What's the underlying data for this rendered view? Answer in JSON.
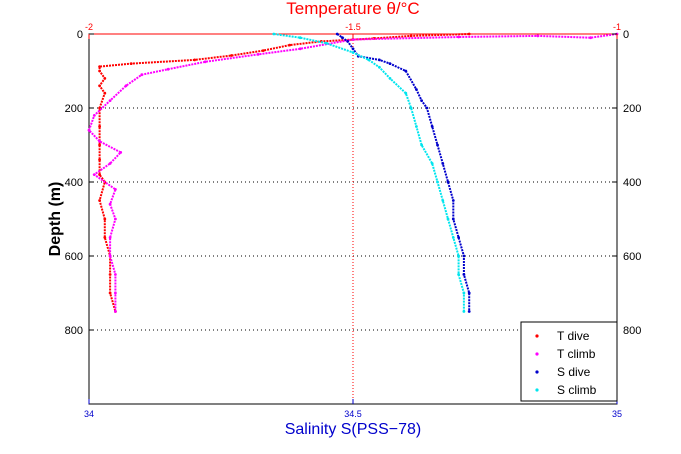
{
  "chart_data": {
    "type": "scatter",
    "top_axis": {
      "label": "Temperature θ/°C",
      "range": [
        -2,
        -1
      ],
      "ticks": [
        "-2",
        "-1.5",
        "-1"
      ],
      "color": "#ff0000"
    },
    "bottom_axis": {
      "label": "Salinity S(PSS−78)",
      "range": [
        34,
        35
      ],
      "ticks": [
        "34",
        "34.5",
        "35"
      ],
      "color": "#0000cc"
    },
    "y_axis": {
      "label": "Depth (m)",
      "range": [
        0,
        1000
      ],
      "reversed": true,
      "ticks": [
        "0",
        "200",
        "400",
        "600",
        "800"
      ],
      "grid": "dotted"
    },
    "legend_position": "bottom-right",
    "series": [
      {
        "name": "T dive",
        "axis": "top",
        "color": "#ff0000",
        "points": [
          [
            -1.28,
            0
          ],
          [
            -1.39,
            5
          ],
          [
            -1.46,
            12
          ],
          [
            -1.56,
            20
          ],
          [
            -1.62,
            30
          ],
          [
            -1.67,
            45
          ],
          [
            -1.73,
            58
          ],
          [
            -1.8,
            70
          ],
          [
            -1.92,
            80
          ],
          [
            -1.98,
            88
          ],
          [
            -1.98,
            100
          ],
          [
            -1.97,
            120
          ],
          [
            -1.98,
            140
          ],
          [
            -1.97,
            160
          ],
          [
            -1.98,
            200
          ],
          [
            -1.98,
            250
          ],
          [
            -1.98,
            300
          ],
          [
            -1.98,
            340
          ],
          [
            -1.98,
            380
          ],
          [
            -1.97,
            400
          ],
          [
            -1.98,
            450
          ],
          [
            -1.97,
            500
          ],
          [
            -1.97,
            550
          ],
          [
            -1.96,
            600
          ],
          [
            -1.96,
            650
          ],
          [
            -1.96,
            700
          ],
          [
            -1.95,
            750
          ]
        ]
      },
      {
        "name": "T climb",
        "axis": "top",
        "color": "#ff00ff",
        "points": [
          [
            -1.0,
            0
          ],
          [
            -1.05,
            10
          ],
          [
            -1.15,
            5
          ],
          [
            -1.3,
            8
          ],
          [
            -1.5,
            15
          ],
          [
            -1.6,
            40
          ],
          [
            -1.68,
            55
          ],
          [
            -1.78,
            75
          ],
          [
            -1.85,
            95
          ],
          [
            -1.9,
            110
          ],
          [
            -1.93,
            140
          ],
          [
            -1.96,
            180
          ],
          [
            -1.99,
            220
          ],
          [
            -2.0,
            260
          ],
          [
            -1.98,
            290
          ],
          [
            -1.94,
            320
          ],
          [
            -1.96,
            350
          ],
          [
            -1.99,
            380
          ],
          [
            -1.95,
            420
          ],
          [
            -1.96,
            460
          ],
          [
            -1.95,
            500
          ],
          [
            -1.96,
            550
          ],
          [
            -1.96,
            600
          ],
          [
            -1.95,
            650
          ],
          [
            -1.95,
            700
          ],
          [
            -1.95,
            750
          ]
        ]
      },
      {
        "name": "S dive",
        "axis": "bottom",
        "color": "#0000cc",
        "points": [
          [
            34.47,
            0
          ],
          [
            34.48,
            10
          ],
          [
            34.49,
            20
          ],
          [
            34.5,
            40
          ],
          [
            34.51,
            60
          ],
          [
            34.55,
            70
          ],
          [
            34.57,
            80
          ],
          [
            34.6,
            100
          ],
          [
            34.62,
            150
          ],
          [
            34.63,
            180
          ],
          [
            34.64,
            200
          ],
          [
            34.65,
            250
          ],
          [
            34.66,
            300
          ],
          [
            34.67,
            350
          ],
          [
            34.68,
            400
          ],
          [
            34.69,
            450
          ],
          [
            34.69,
            500
          ],
          [
            34.7,
            550
          ],
          [
            34.71,
            600
          ],
          [
            34.71,
            650
          ],
          [
            34.72,
            700
          ],
          [
            34.72,
            750
          ]
        ]
      },
      {
        "name": "S climb",
        "axis": "bottom",
        "color": "#00e5ee",
        "points": [
          [
            34.35,
            0
          ],
          [
            34.4,
            10
          ],
          [
            34.45,
            25
          ],
          [
            34.5,
            50
          ],
          [
            34.53,
            70
          ],
          [
            34.55,
            90
          ],
          [
            34.57,
            120
          ],
          [
            34.6,
            160
          ],
          [
            34.61,
            200
          ],
          [
            34.62,
            250
          ],
          [
            34.63,
            300
          ],
          [
            34.65,
            350
          ],
          [
            34.66,
            400
          ],
          [
            34.67,
            450
          ],
          [
            34.68,
            500
          ],
          [
            34.69,
            550
          ],
          [
            34.7,
            600
          ],
          [
            34.7,
            650
          ],
          [
            34.71,
            700
          ],
          [
            34.71,
            750
          ]
        ]
      }
    ],
    "reference_lines": [
      {
        "axis": "top",
        "value": -1.5,
        "color": "#ff0000",
        "style": "dotted"
      },
      {
        "axis": "top",
        "at": 0,
        "color": "#ff0000",
        "style": "solid"
      }
    ]
  }
}
